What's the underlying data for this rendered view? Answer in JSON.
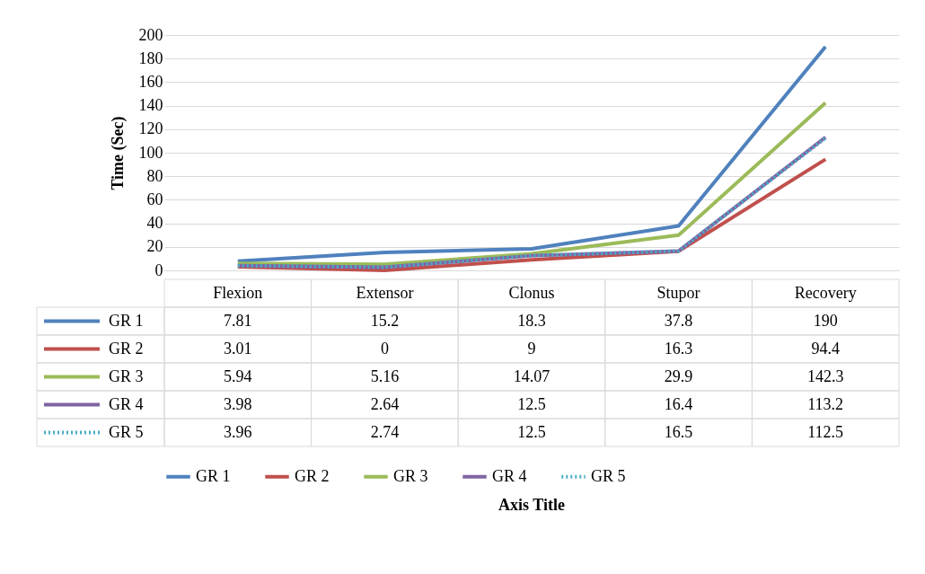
{
  "chart_data": {
    "type": "line",
    "annotations": [
      "Axis Title"
    ],
    "ylabel": "Time  (Sec)",
    "categories": [
      "Flexion",
      "Extensor",
      "Clonus",
      "Stupor",
      "Recovery"
    ],
    "series": [
      {
        "name": "GR 1",
        "color": "#4f81bd",
        "values": [
          7.81,
          15.2,
          18.3,
          37.8,
          190
        ]
      },
      {
        "name": "GR 2",
        "color": "#c0504d",
        "values": [
          3.01,
          0,
          9,
          16.3,
          94.4
        ]
      },
      {
        "name": "GR 3",
        "color": "#9bbb59",
        "values": [
          5.94,
          5.16,
          14.07,
          29.9,
          142.3
        ]
      },
      {
        "name": "GR 4",
        "color": "#8064a2",
        "values": [
          3.98,
          2.64,
          12.5,
          16.4,
          113.2
        ]
      },
      {
        "name": "GR 5",
        "color": "#4bacc6",
        "values": [
          3.96,
          2.74,
          12.5,
          16.5,
          112.5
        ],
        "line_style": "dotted"
      }
    ],
    "ylim": [
      0,
      200
    ],
    "yticks": [
      0,
      20,
      40,
      60,
      80,
      100,
      120,
      140,
      160,
      180,
      200
    ],
    "grid": "y",
    "legend": "bottom",
    "marker": "none",
    "data_labels": true
  }
}
